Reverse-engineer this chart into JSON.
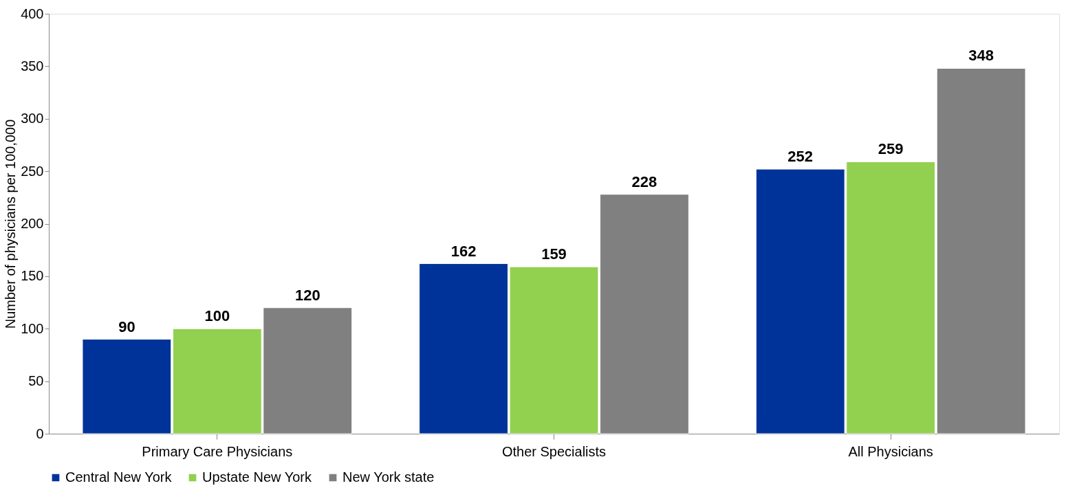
{
  "chart_data": {
    "type": "bar",
    "ylabel": "Number of physicians per 100,000",
    "categories": [
      "Primary Care Physicians",
      "Other Specialists",
      "All Physicians"
    ],
    "series": [
      {
        "name": "Central New York",
        "color": "#003399",
        "values": [
          90,
          162,
          252
        ]
      },
      {
        "name": "Upstate New York",
        "color": "#92d050",
        "values": [
          100,
          159,
          259
        ]
      },
      {
        "name": "New York state",
        "color": "#808080",
        "values": [
          120,
          228,
          348
        ]
      }
    ],
    "ylim": [
      0,
      400
    ],
    "yticks": [
      0,
      50,
      100,
      150,
      200,
      250,
      300,
      350,
      400
    ],
    "grid": false,
    "legend": "bottom",
    "data_labels": true
  }
}
